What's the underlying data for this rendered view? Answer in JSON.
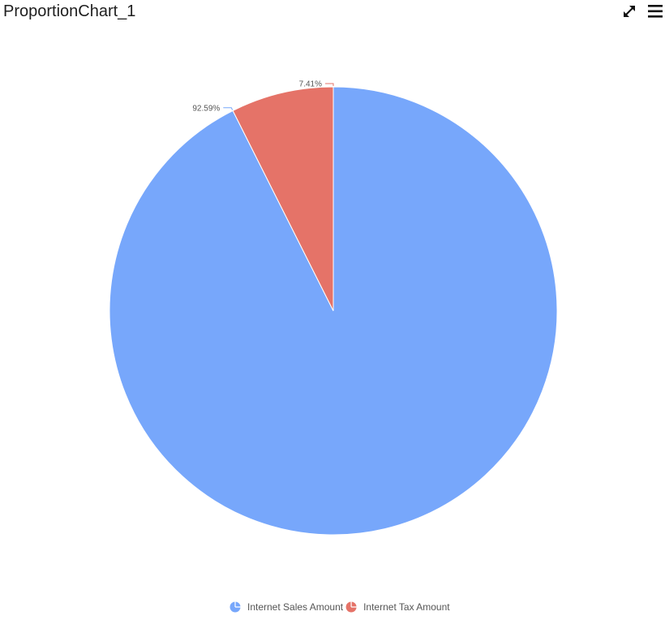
{
  "widget": {
    "title": "ProportionChart_1",
    "icons": {
      "expand": "expand-arrows-icon",
      "menu": "hamburger-menu-icon"
    }
  },
  "chart_data": {
    "type": "pie",
    "title": "",
    "legend_position": "bottom",
    "slices": [
      {
        "name": "Internet Sales Amount",
        "value": 92.59,
        "label": "92.59%",
        "color": "#77a7fb"
      },
      {
        "name": "Internet Tax Amount",
        "value": 7.41,
        "label": "7.41%",
        "color": "#e57368"
      }
    ]
  }
}
